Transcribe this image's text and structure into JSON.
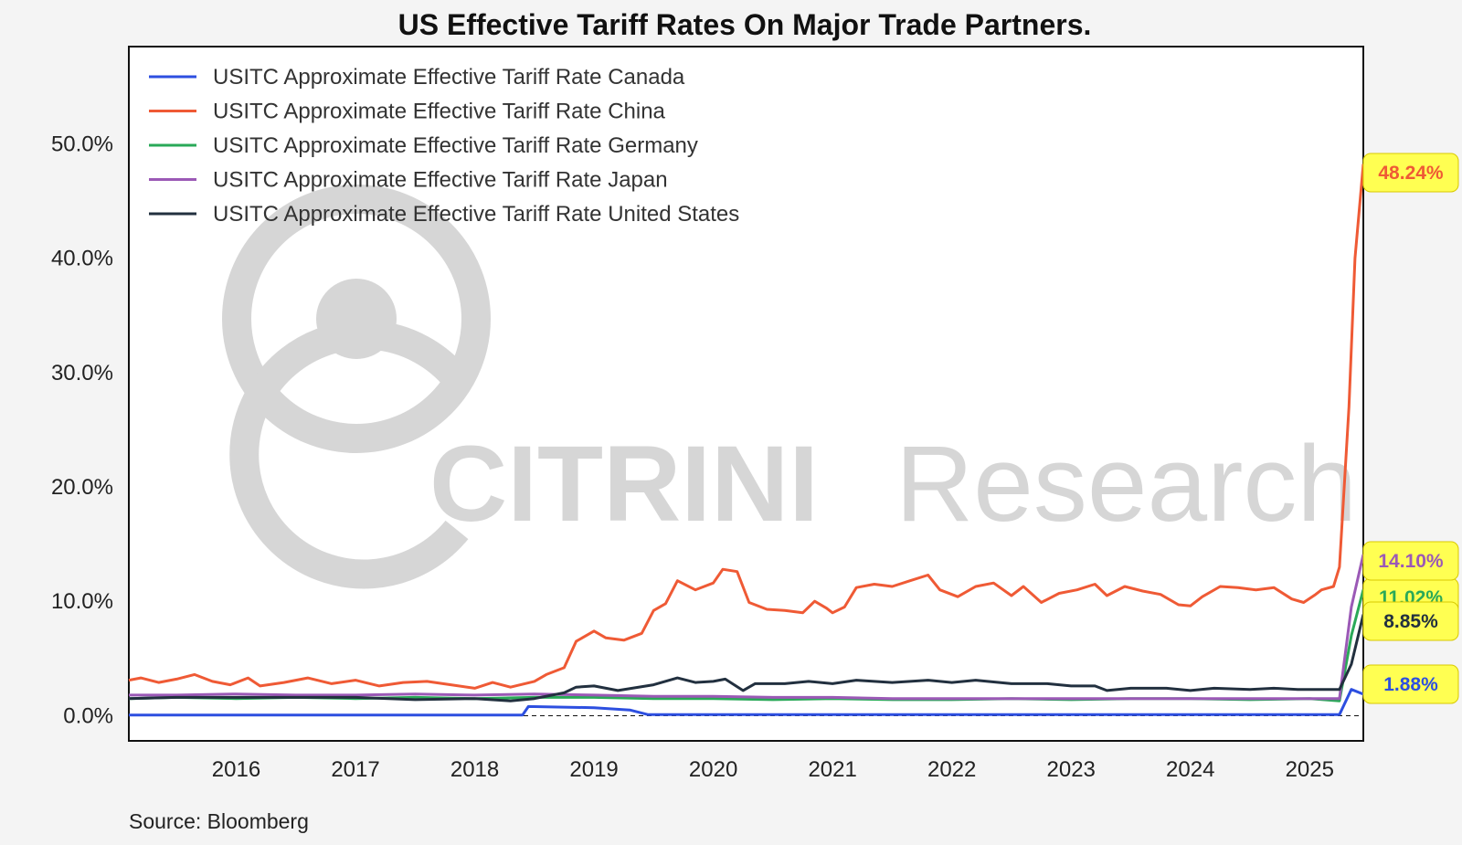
{
  "chart_data": {
    "type": "line",
    "title": "US Effective Tariff Rates On Major Trade Partners.",
    "source": "Source: Bloomberg",
    "watermark": {
      "brand": "CITRINI",
      "suffix": "Research"
    },
    "xlabel": "",
    "ylabel": "",
    "xlim": [
      2015.1,
      2025.45
    ],
    "ylim": [
      -2.2,
      58.5
    ],
    "grid": false,
    "legend": "top-left",
    "x_ticks": [
      2016,
      2017,
      2018,
      2019,
      2020,
      2021,
      2022,
      2023,
      2024,
      2025
    ],
    "x_tick_labels": [
      "2016",
      "2017",
      "2018",
      "2019",
      "2020",
      "2021",
      "2022",
      "2023",
      "2024",
      "2025"
    ],
    "y_ticks": [
      0,
      10,
      20,
      30,
      40,
      50
    ],
    "y_tick_labels": [
      "0.0%",
      "10.0%",
      "20.0%",
      "30.0%",
      "40.0%",
      "50.0%"
    ],
    "series": [
      {
        "name": "USITC Approximate Effective Tariff Rate Canada",
        "color": "#2d4fe0",
        "end_label": "1.88%",
        "points": [
          [
            2015.1,
            0.05
          ],
          [
            2018.4,
            0.05
          ],
          [
            2018.45,
            0.8
          ],
          [
            2019.0,
            0.7
          ],
          [
            2019.3,
            0.5
          ],
          [
            2019.45,
            0.1
          ],
          [
            2025.25,
            0.1
          ],
          [
            2025.35,
            2.3
          ],
          [
            2025.45,
            1.88
          ]
        ]
      },
      {
        "name": "USITC Approximate Effective Tariff Rate China",
        "color": "#ef5a35",
        "end_label": "48.24%",
        "points": [
          [
            2015.1,
            3.1
          ],
          [
            2015.2,
            3.3
          ],
          [
            2015.35,
            2.9
          ],
          [
            2015.5,
            3.2
          ],
          [
            2015.65,
            3.6
          ],
          [
            2015.8,
            3.0
          ],
          [
            2015.95,
            2.7
          ],
          [
            2016.1,
            3.3
          ],
          [
            2016.2,
            2.6
          ],
          [
            2016.4,
            2.9
          ],
          [
            2016.6,
            3.3
          ],
          [
            2016.8,
            2.8
          ],
          [
            2017.0,
            3.1
          ],
          [
            2017.2,
            2.6
          ],
          [
            2017.4,
            2.9
          ],
          [
            2017.6,
            3.0
          ],
          [
            2017.8,
            2.7
          ],
          [
            2018.0,
            2.4
          ],
          [
            2018.15,
            2.9
          ],
          [
            2018.3,
            2.5
          ],
          [
            2018.5,
            3.0
          ],
          [
            2018.6,
            3.6
          ],
          [
            2018.75,
            4.2
          ],
          [
            2018.85,
            6.5
          ],
          [
            2019.0,
            7.4
          ],
          [
            2019.1,
            6.8
          ],
          [
            2019.25,
            6.6
          ],
          [
            2019.4,
            7.2
          ],
          [
            2019.5,
            9.2
          ],
          [
            2019.6,
            9.8
          ],
          [
            2019.7,
            11.8
          ],
          [
            2019.85,
            11.0
          ],
          [
            2020.0,
            11.6
          ],
          [
            2020.08,
            12.8
          ],
          [
            2020.2,
            12.6
          ],
          [
            2020.3,
            9.9
          ],
          [
            2020.45,
            9.3
          ],
          [
            2020.6,
            9.2
          ],
          [
            2020.75,
            9.0
          ],
          [
            2020.85,
            10.0
          ],
          [
            2020.95,
            9.4
          ],
          [
            2021.0,
            9.0
          ],
          [
            2021.1,
            9.5
          ],
          [
            2021.2,
            11.2
          ],
          [
            2021.35,
            11.5
          ],
          [
            2021.5,
            11.3
          ],
          [
            2021.65,
            11.8
          ],
          [
            2021.8,
            12.3
          ],
          [
            2021.9,
            11.0
          ],
          [
            2022.05,
            10.4
          ],
          [
            2022.2,
            11.3
          ],
          [
            2022.35,
            11.6
          ],
          [
            2022.5,
            10.5
          ],
          [
            2022.6,
            11.3
          ],
          [
            2022.75,
            9.9
          ],
          [
            2022.9,
            10.7
          ],
          [
            2023.05,
            11.0
          ],
          [
            2023.2,
            11.5
          ],
          [
            2023.3,
            10.5
          ],
          [
            2023.45,
            11.3
          ],
          [
            2023.6,
            10.9
          ],
          [
            2023.75,
            10.6
          ],
          [
            2023.9,
            9.7
          ],
          [
            2024.0,
            9.6
          ],
          [
            2024.1,
            10.4
          ],
          [
            2024.25,
            11.3
          ],
          [
            2024.4,
            11.2
          ],
          [
            2024.55,
            11.0
          ],
          [
            2024.7,
            11.2
          ],
          [
            2024.85,
            10.2
          ],
          [
            2024.95,
            9.9
          ],
          [
            2025.05,
            10.6
          ],
          [
            2025.1,
            11.0
          ],
          [
            2025.2,
            11.3
          ],
          [
            2025.25,
            13.0
          ],
          [
            2025.33,
            27.0
          ],
          [
            2025.38,
            40.0
          ],
          [
            2025.45,
            48.24
          ]
        ]
      },
      {
        "name": "USITC Approximate Effective Tariff Rate Germany",
        "color": "#2aa958",
        "end_label": "11.02%",
        "points": [
          [
            2015.1,
            1.5
          ],
          [
            2015.5,
            1.6
          ],
          [
            2016.0,
            1.5
          ],
          [
            2016.5,
            1.6
          ],
          [
            2017.0,
            1.5
          ],
          [
            2017.5,
            1.6
          ],
          [
            2018.0,
            1.5
          ],
          [
            2018.5,
            1.6
          ],
          [
            2019.0,
            1.6
          ],
          [
            2019.5,
            1.5
          ],
          [
            2020.0,
            1.5
          ],
          [
            2020.5,
            1.4
          ],
          [
            2021.0,
            1.5
          ],
          [
            2021.5,
            1.4
          ],
          [
            2022.0,
            1.4
          ],
          [
            2022.5,
            1.5
          ],
          [
            2023.0,
            1.4
          ],
          [
            2023.5,
            1.5
          ],
          [
            2024.0,
            1.5
          ],
          [
            2024.5,
            1.4
          ],
          [
            2025.0,
            1.5
          ],
          [
            2025.25,
            1.3
          ],
          [
            2025.35,
            7.0
          ],
          [
            2025.45,
            11.02
          ]
        ]
      },
      {
        "name": "USITC Approximate Effective Tariff Rate Japan",
        "color": "#9b59b6",
        "end_label": "14.10%",
        "points": [
          [
            2015.1,
            1.8
          ],
          [
            2015.5,
            1.8
          ],
          [
            2016.0,
            1.9
          ],
          [
            2016.5,
            1.8
          ],
          [
            2017.0,
            1.8
          ],
          [
            2017.5,
            1.9
          ],
          [
            2018.0,
            1.8
          ],
          [
            2018.5,
            1.9
          ],
          [
            2019.0,
            1.8
          ],
          [
            2019.5,
            1.7
          ],
          [
            2020.0,
            1.7
          ],
          [
            2020.5,
            1.6
          ],
          [
            2021.0,
            1.6
          ],
          [
            2021.5,
            1.5
          ],
          [
            2022.0,
            1.5
          ],
          [
            2022.5,
            1.5
          ],
          [
            2023.0,
            1.5
          ],
          [
            2023.5,
            1.5
          ],
          [
            2024.0,
            1.5
          ],
          [
            2024.5,
            1.5
          ],
          [
            2025.0,
            1.5
          ],
          [
            2025.25,
            1.5
          ],
          [
            2025.35,
            9.5
          ],
          [
            2025.45,
            14.1
          ]
        ]
      },
      {
        "name": "USITC Approximate Effective Tariff Rate United States",
        "color": "#22303f",
        "end_label": "8.85%",
        "points": [
          [
            2015.1,
            1.5
          ],
          [
            2015.5,
            1.6
          ],
          [
            2016.0,
            1.6
          ],
          [
            2016.5,
            1.6
          ],
          [
            2017.0,
            1.6
          ],
          [
            2017.5,
            1.4
          ],
          [
            2018.0,
            1.5
          ],
          [
            2018.3,
            1.3
          ],
          [
            2018.5,
            1.5
          ],
          [
            2018.75,
            2.0
          ],
          [
            2018.85,
            2.5
          ],
          [
            2019.0,
            2.6
          ],
          [
            2019.2,
            2.2
          ],
          [
            2019.5,
            2.7
          ],
          [
            2019.7,
            3.3
          ],
          [
            2019.85,
            2.9
          ],
          [
            2020.0,
            3.0
          ],
          [
            2020.1,
            3.2
          ],
          [
            2020.25,
            2.2
          ],
          [
            2020.35,
            2.8
          ],
          [
            2020.6,
            2.8
          ],
          [
            2020.8,
            3.0
          ],
          [
            2021.0,
            2.8
          ],
          [
            2021.2,
            3.1
          ],
          [
            2021.5,
            2.9
          ],
          [
            2021.8,
            3.1
          ],
          [
            2022.0,
            2.9
          ],
          [
            2022.2,
            3.1
          ],
          [
            2022.5,
            2.8
          ],
          [
            2022.8,
            2.8
          ],
          [
            2023.0,
            2.6
          ],
          [
            2023.2,
            2.6
          ],
          [
            2023.3,
            2.2
          ],
          [
            2023.5,
            2.4
          ],
          [
            2023.8,
            2.4
          ],
          [
            2024.0,
            2.2
          ],
          [
            2024.2,
            2.4
          ],
          [
            2024.5,
            2.3
          ],
          [
            2024.7,
            2.4
          ],
          [
            2024.9,
            2.3
          ],
          [
            2025.1,
            2.3
          ],
          [
            2025.25,
            2.3
          ],
          [
            2025.35,
            4.5
          ],
          [
            2025.45,
            8.85
          ]
        ]
      }
    ]
  }
}
